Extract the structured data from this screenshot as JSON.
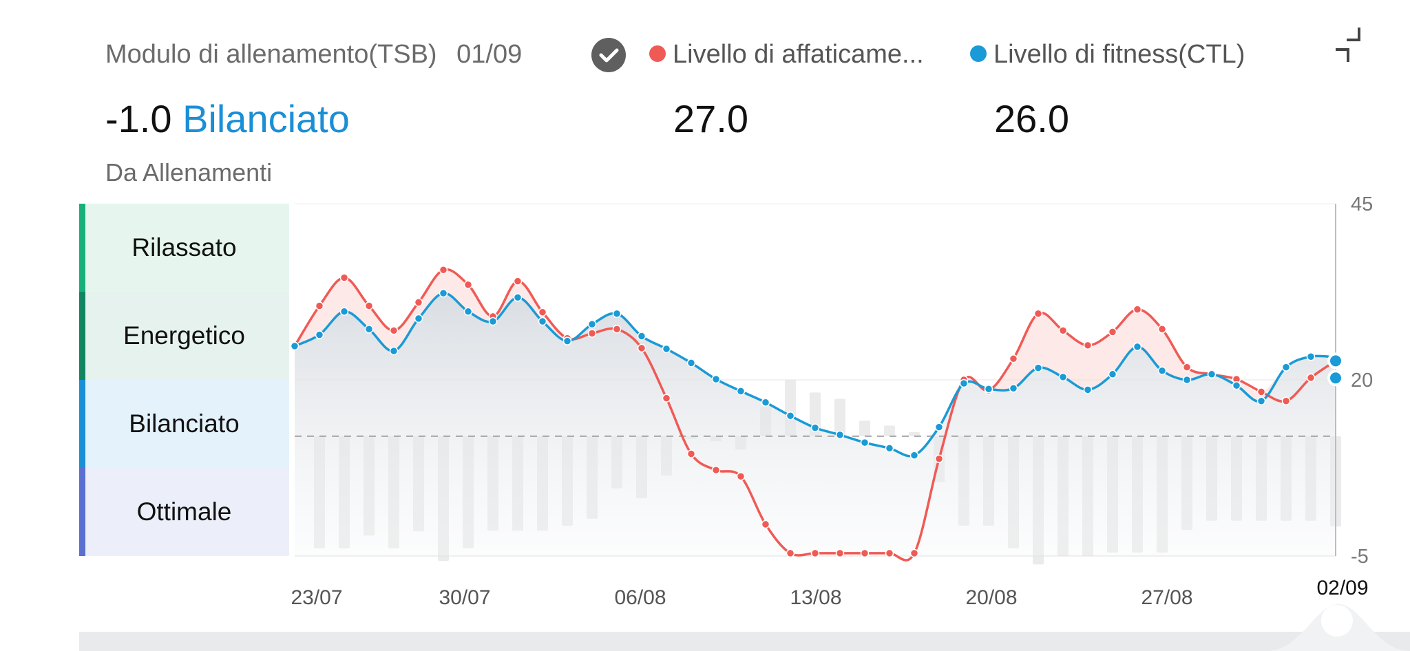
{
  "header": {
    "title": "Modulo di allenamento(TSB)",
    "date": "01/09",
    "check_icon": "check-circle-icon",
    "collapse_icon": "collapse-icon"
  },
  "legend": [
    {
      "label": "Livello di affaticame...",
      "color": "#f05a55"
    },
    {
      "label": "Livello di fitness(CTL)",
      "color": "#1a9ad6"
    }
  ],
  "values": {
    "tsb_value": "-1.0",
    "tsb_status": "Bilanciato",
    "atl_value": "27.0",
    "ctl_value": "26.0"
  },
  "source_label": "Da Allenamenti",
  "zones": [
    {
      "label": "Rilassato",
      "bg": "#e6f6ef",
      "bar": "#17b07a"
    },
    {
      "label": "Energetico",
      "bg": "#e6f2ee",
      "bar": "#128560"
    },
    {
      "label": "Bilanciato",
      "bg": "#e4f2fb",
      "bar": "#1a8fd6"
    },
    {
      "label": "Ottimale",
      "bg": "#eceffa",
      "bar": "#5a6fd0"
    }
  ],
  "chart_data": {
    "type": "line",
    "ylim": [
      -5,
      45
    ],
    "yticks": [
      "45",
      "20",
      "-5"
    ],
    "xticks": [
      "23/07",
      "30/07",
      "06/08",
      "13/08",
      "20/08",
      "27/08",
      "02/09"
    ],
    "baseline": 12,
    "series": [
      {
        "name": "Livello di affaticame...",
        "color": "#f05a55",
        "values": [
          24.8,
          30.5,
          34.5,
          30.5,
          27,
          31,
          35.6,
          33.5,
          29,
          34,
          29.6,
          25.9,
          26.6,
          27.2,
          24.5,
          17.4,
          9.5,
          7.2,
          6.3,
          -0.5,
          -4.6,
          -4.6,
          -4.6,
          -4.6,
          -4.6,
          -4.6,
          8.8,
          20,
          18.5,
          23,
          29.4,
          27,
          24.9,
          26.8,
          30,
          27.2,
          21.8,
          20.8,
          20.1,
          18.3,
          17,
          20.3,
          22.7
        ]
      },
      {
        "name": "Livello di fitness(CTL)",
        "color": "#1a9ad6",
        "values": [
          24.8,
          26.4,
          29.7,
          27.2,
          24.1,
          28.7,
          32.3,
          29.7,
          28.3,
          31.7,
          28.3,
          25.5,
          27.9,
          29.4,
          26.2,
          24.4,
          22.4,
          20.1,
          18.4,
          16.8,
          14.9,
          13.2,
          12.2,
          11.1,
          10.3,
          9.3,
          13.3,
          19.5,
          18.7,
          18.8,
          21.7,
          20.4,
          18.6,
          20.8,
          24.7,
          21.3,
          20,
          20.8,
          19.2,
          17,
          21.8,
          23.3,
          23.2
        ]
      },
      {
        "name": "bars",
        "color": "#ebebeb",
        "values": [
          null,
          -3.9,
          -3.9,
          -2.1,
          -3.9,
          -1.5,
          -5.7,
          -3.9,
          -1.4,
          -1.4,
          -1.4,
          -0.7,
          0.3,
          4.6,
          3.2,
          6.4,
          12,
          11.3,
          10.1,
          16.2,
          20,
          18.2,
          17.3,
          14.2,
          13.5,
          12.6,
          5.5,
          -0.7,
          -0.7,
          -3.9,
          -6.2,
          -5,
          -5,
          -4.5,
          -4.5,
          -4.5,
          -1.3,
          0,
          0,
          0,
          0,
          0,
          -0.8
        ]
      }
    ]
  }
}
